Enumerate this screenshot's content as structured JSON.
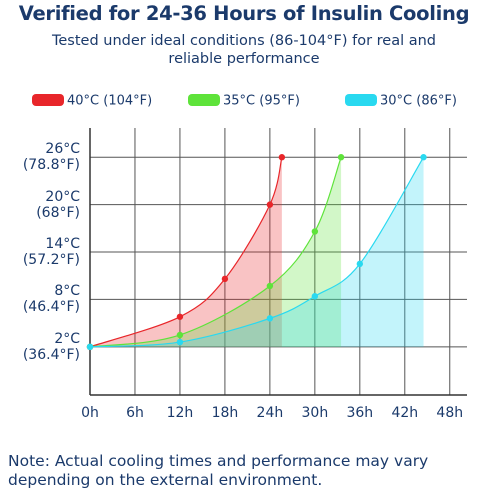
{
  "chart_data": {
    "type": "line",
    "title": "Verified for 24-36 Hours of Insulin Cooling",
    "subtitle": "Tested under ideal conditions (86-104°F) for real and reliable performance",
    "note": "Note: Actual cooling times and performance may vary depending on the external environment.",
    "series": [
      {
        "name": "40°C (104°F)",
        "color": "#e8262a",
        "x": [
          0,
          12,
          18,
          24,
          25.6
        ],
        "values": [
          2,
          5.8,
          10.6,
          20,
          26
        ]
      },
      {
        "name": "35°C (95°F)",
        "color": "#5ee33a",
        "x": [
          0,
          12,
          24,
          30,
          33.5
        ],
        "values": [
          2,
          3.5,
          9.7,
          16.6,
          26
        ]
      },
      {
        "name": "30°C (86°F)",
        "color": "#29d9f0",
        "x": [
          0,
          12,
          24,
          30,
          36,
          44.5
        ],
        "values": [
          2,
          2.6,
          5.6,
          8.4,
          12.5,
          26
        ]
      }
    ],
    "xlim": [
      0,
      50.3
    ],
    "xticks": [
      {
        "value": 0,
        "label": "0h"
      },
      {
        "value": 6,
        "label": "6h"
      },
      {
        "value": 12,
        "label": "12h"
      },
      {
        "value": 18,
        "label": "18h"
      },
      {
        "value": 24,
        "label": "24h"
      },
      {
        "value": 30,
        "label": "30h"
      },
      {
        "value": 36,
        "label": "36h"
      },
      {
        "value": 42,
        "label": "42h"
      },
      {
        "value": 48,
        "label": "48h"
      }
    ],
    "ylim": [
      -4.1,
      29.7
    ],
    "yticks": [
      {
        "value": 2,
        "label": "2°C\n(36.4°F)"
      },
      {
        "value": 8,
        "label": "8°C\n(46.4°F)"
      },
      {
        "value": 14,
        "label": "14°C\n(57.2°F)"
      },
      {
        "value": 20,
        "label": "20°C\n(68°F)"
      },
      {
        "value": 26,
        "label": "26°C\n(78.8°F)"
      }
    ],
    "grid": true
  }
}
